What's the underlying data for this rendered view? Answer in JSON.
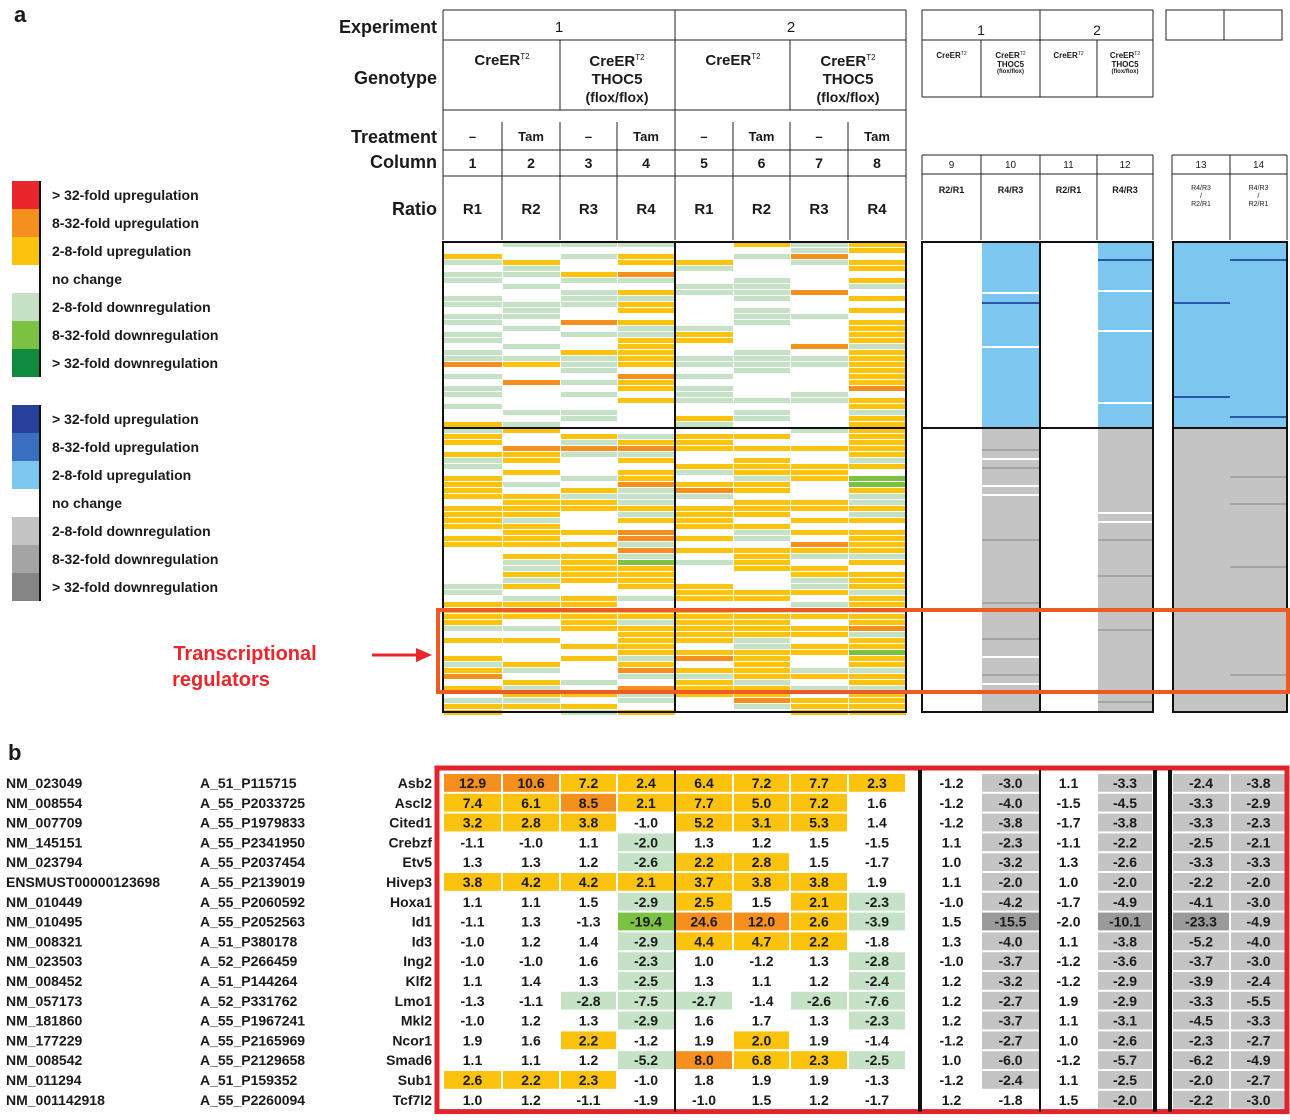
{
  "panel_a": {
    "label": "a",
    "row_labels": {
      "experiment": "Experiment",
      "genotype": "Genotype",
      "treatment": "Treatment",
      "column": "Column",
      "ratio": "Ratio"
    },
    "experiments_main": [
      "1",
      "2"
    ],
    "genotypes_main": [
      {
        "line1": "CreER",
        "sup": "T2",
        "line2": "",
        "line3": ""
      },
      {
        "line1": "CreER",
        "sup": "T2",
        "line2": "THOC5",
        "line3": "(flox/flox)"
      },
      {
        "line1": "CreER",
        "sup": "T2",
        "line2": "",
        "line3": ""
      },
      {
        "line1": "CreER",
        "sup": "T2",
        "line2": "THOC5",
        "line3": "(flox/flox)"
      }
    ],
    "treatments": [
      "–",
      "Tam",
      "–",
      "Tam",
      "–",
      "Tam",
      "–",
      "Tam"
    ],
    "columns_main": [
      "1",
      "2",
      "3",
      "4",
      "5",
      "6",
      "7",
      "8"
    ],
    "ratios_main": [
      "R1",
      "R2",
      "R3",
      "R4",
      "R1",
      "R2",
      "R3",
      "R4"
    ],
    "experiments_g2": [
      "1",
      "2"
    ],
    "genotypes_g2": [
      {
        "line1": "CreER",
        "sup": "T2",
        "line2": "",
        "line3": ""
      },
      {
        "line1": "CreER",
        "sup": "T2",
        "line2": "THOC5",
        "line3": "(flox/flox)"
      },
      {
        "line1": "CreER",
        "sup": "T2",
        "line2": "",
        "line3": ""
      },
      {
        "line1": "CreER",
        "sup": "T2",
        "line2": "THOC5",
        "line3": "(flox/flox)"
      }
    ],
    "columns_g2": [
      "9",
      "10",
      "11",
      "12"
    ],
    "ratios_g2": [
      "R2/R1",
      "R4/R3",
      "R2/R1",
      "R4/R3"
    ],
    "columns_g3": [
      "13",
      "14"
    ],
    "ratios_g3": [
      {
        "top": "R4/R3",
        "mid": "/",
        "bot": "R2/R1"
      },
      {
        "top": "R4/R3",
        "mid": "/",
        "bot": "R2/R1"
      }
    ],
    "legend_heat": [
      {
        "label": "> 32-fold upregulation",
        "color": "#e8262b"
      },
      {
        "label": "8-32-fold upregulation",
        "color": "#f5901e"
      },
      {
        "label": "2-8-fold upregulation",
        "color": "#fcc30e"
      },
      {
        "label": "no change",
        "color": "#ffffff"
      },
      {
        "label": "2-8-fold downregulation",
        "color": "#c5e2c6"
      },
      {
        "label": "8-32-fold downregulation",
        "color": "#7cc242"
      },
      {
        "label": "> 32-fold downregulation",
        "color": "#0f8a3e"
      }
    ],
    "legend_ratio": [
      {
        "label": "> 32-fold upregulation",
        "color": "#27419a"
      },
      {
        "label": "8-32-fold upregulation",
        "color": "#3a6fc0"
      },
      {
        "label": "2-8-fold upregulation",
        "color": "#7cc6ef"
      },
      {
        "label": "no change",
        "color": "#ffffff"
      },
      {
        "label": "2-8-fold downregulation",
        "color": "#c4c4c4"
      },
      {
        "label": "8-32-fold downregulation",
        "color": "#a4a4a4"
      },
      {
        "label": "> 32-fold downregulation",
        "color": "#858585"
      }
    ],
    "annotation": {
      "line1": "Transcriptional",
      "line2": "regulators",
      "color": "#e8262b",
      "box_color": "#ee5a24"
    }
  },
  "panel_b": {
    "label": "b",
    "frame_color": "#e0242e",
    "rows": [
      {
        "acc": "NM_023049",
        "probe": "A_51_P115715",
        "gene": "Asb2",
        "v": [
          "12.9",
          "10.6",
          "7.2",
          "2.4",
          "6.4",
          "7.2",
          "7.7",
          "2.3",
          "-1.2",
          "-3.0",
          "1.1",
          "-3.3",
          "-2.4",
          "-3.8"
        ]
      },
      {
        "acc": "NM_008554",
        "probe": "A_55_P2033725",
        "gene": "Ascl2",
        "v": [
          "7.4",
          "6.1",
          "8.5",
          "2.1",
          "7.7",
          "5.0",
          "7.2",
          "1.6",
          "-1.2",
          "-4.0",
          "-1.5",
          "-4.5",
          "-3.3",
          "-2.9"
        ]
      },
      {
        "acc": "NM_007709",
        "probe": "A_55_P1979833",
        "gene": "Cited1",
        "v": [
          "3.2",
          "2.8",
          "3.8",
          "-1.0",
          "5.2",
          "3.1",
          "5.3",
          "1.4",
          "-1.2",
          "-3.8",
          "-1.7",
          "-3.8",
          "-3.3",
          "-2.3"
        ]
      },
      {
        "acc": "NM_145151",
        "probe": "A_55_P2341950",
        "gene": "Crebzf",
        "v": [
          "-1.1",
          "-1.0",
          "1.1",
          "-2.0",
          "1.3",
          "1.2",
          "1.5",
          "-1.5",
          "1.1",
          "-2.3",
          "-1.1",
          "-2.2",
          "-2.5",
          "-2.1"
        ]
      },
      {
        "acc": "NM_023794",
        "probe": "A_55_P2037454",
        "gene": "Etv5",
        "v": [
          "1.3",
          "1.3",
          "1.2",
          "-2.6",
          "2.2",
          "2.8",
          "1.5",
          "-1.7",
          "1.0",
          "-3.2",
          "1.3",
          "-2.6",
          "-3.3",
          "-3.3"
        ]
      },
      {
        "acc": "ENSMUST00000123698",
        "probe": "A_55_P2139019",
        "gene": "Hivep3",
        "v": [
          "3.8",
          "4.2",
          "4.2",
          "2.1",
          "3.7",
          "3.8",
          "3.8",
          "1.9",
          "1.1",
          "-2.0",
          "1.0",
          "-2.0",
          "-2.2",
          "-2.0"
        ]
      },
      {
        "acc": "NM_010449",
        "probe": "A_55_P2060592",
        "gene": "Hoxa1",
        "v": [
          "1.1",
          "1.1",
          "1.5",
          "-2.9",
          "2.5",
          "1.5",
          "2.1",
          "-2.3",
          "-1.0",
          "-4.2",
          "-1.7",
          "-4.9",
          "-4.1",
          "-3.0"
        ]
      },
      {
        "acc": "NM_010495",
        "probe": "A_55_P2052563",
        "gene": "Id1",
        "v": [
          "-1.1",
          "1.3",
          "-1.3",
          "-19.4",
          "24.6",
          "12.0",
          "2.6",
          "-3.9",
          "1.5",
          "-15.5",
          "-2.0",
          "-10.1",
          "-23.3",
          "-4.9"
        ]
      },
      {
        "acc": "NM_008321",
        "probe": "A_51_P380178",
        "gene": "Id3",
        "v": [
          "-1.0",
          "1.2",
          "1.4",
          "-2.9",
          "4.4",
          "4.7",
          "2.2",
          "-1.8",
          "1.3",
          "-4.0",
          "1.1",
          "-3.8",
          "-5.2",
          "-4.0"
        ]
      },
      {
        "acc": "NM_023503",
        "probe": "A_52_P266459",
        "gene": "Ing2",
        "v": [
          "-1.0",
          "-1.0",
          "1.6",
          "-2.3",
          "1.0",
          "-1.2",
          "1.3",
          "-2.8",
          "-1.0",
          "-3.7",
          "-1.2",
          "-3.6",
          "-3.7",
          "-3.0"
        ]
      },
      {
        "acc": "NM_008452",
        "probe": "A_51_P144264",
        "gene": "Klf2",
        "v": [
          "1.1",
          "1.4",
          "1.3",
          "-2.5",
          "1.3",
          "1.1",
          "1.2",
          "-2.4",
          "1.2",
          "-3.2",
          "-1.2",
          "-2.9",
          "-3.9",
          "-2.4"
        ]
      },
      {
        "acc": "NM_057173",
        "probe": "A_52_P331762",
        "gene": "Lmo1",
        "v": [
          "-1.3",
          "-1.1",
          "-2.8",
          "-7.5",
          "-2.7",
          "-1.4",
          "-2.6",
          "-7.6",
          "1.2",
          "-2.7",
          "1.9",
          "-2.9",
          "-3.3",
          "-5.5"
        ]
      },
      {
        "acc": "NM_181860",
        "probe": "A_55_P1967241",
        "gene": "Mkl2",
        "v": [
          "-1.0",
          "1.2",
          "1.3",
          "-2.9",
          "1.6",
          "1.7",
          "1.3",
          "-2.3",
          "1.2",
          "-3.7",
          "1.1",
          "-3.1",
          "-4.5",
          "-3.3"
        ]
      },
      {
        "acc": "NM_177229",
        "probe": "A_55_P2165969",
        "gene": "Ncor1",
        "v": [
          "1.9",
          "1.6",
          "2.2",
          "-1.2",
          "1.9",
          "2.0",
          "1.9",
          "-1.4",
          "-1.2",
          "-2.7",
          "1.0",
          "-2.6",
          "-2.3",
          "-2.7"
        ]
      },
      {
        "acc": "NM_008542",
        "probe": "A_55_P2129658",
        "gene": "Smad6",
        "v": [
          "1.1",
          "1.1",
          "1.2",
          "-5.2",
          "8.0",
          "6.8",
          "2.3",
          "-2.5",
          "1.0",
          "-6.0",
          "-1.2",
          "-5.7",
          "-6.2",
          "-4.9"
        ]
      },
      {
        "acc": "NM_011294",
        "probe": "A_51_P159352",
        "gene": "Sub1",
        "v": [
          "2.6",
          "2.2",
          "2.3",
          "-1.0",
          "1.8",
          "1.9",
          "1.9",
          "-1.3",
          "-1.2",
          "-2.4",
          "1.1",
          "-2.5",
          "-2.0",
          "-2.7"
        ]
      },
      {
        "acc": "NM_001142918",
        "probe": "A_55_P2260094",
        "gene": "Tcf7l2",
        "v": [
          "1.0",
          "1.2",
          "-1.1",
          "-1.9",
          "-1.0",
          "1.5",
          "1.2",
          "-1.7",
          "1.2",
          "-1.8",
          "1.5",
          "-2.0",
          "-2.2",
          "-3.0"
        ]
      }
    ]
  }
}
